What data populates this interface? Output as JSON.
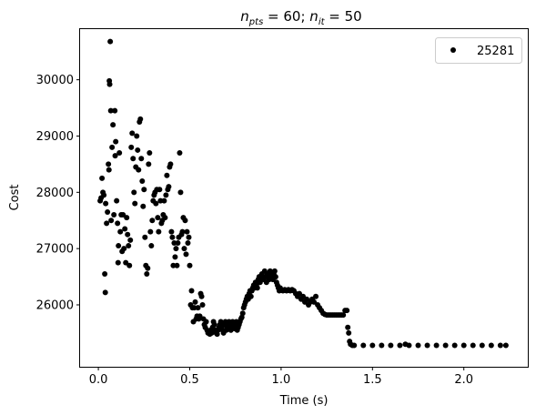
{
  "chart_data": {
    "type": "scatter",
    "title": "n_pts = 60; n_it = 50",
    "title_parts": {
      "n": "n",
      "pts_sub": "pts",
      "eq1": " = 60; ",
      "n2": "n",
      "it_sub": "it",
      "eq2": " = 50"
    },
    "xlabel": "Time (s)",
    "ylabel": "Cost",
    "xlim": [
      -0.1,
      2.35
    ],
    "ylim": [
      24900,
      30900
    ],
    "xticks": [
      0.0,
      0.5,
      1.0,
      1.5,
      2.0
    ],
    "xtick_labels": [
      "0.0",
      "0.5",
      "1.0",
      "1.5",
      "2.0"
    ],
    "yticks": [
      26000,
      27000,
      28000,
      29000,
      30000
    ],
    "ytick_labels": [
      "26000",
      "27000",
      "28000",
      "29000",
      "30000"
    ],
    "grid": false,
    "legend_position": "top-right",
    "series": [
      {
        "name": "25281",
        "color": "#000000",
        "marker": "circle",
        "points": [
          [
            0.01,
            27850
          ],
          [
            0.015,
            27900
          ],
          [
            0.02,
            28250
          ],
          [
            0.025,
            28000
          ],
          [
            0.03,
            27950
          ],
          [
            0.035,
            26550
          ],
          [
            0.038,
            26220
          ],
          [
            0.04,
            27800
          ],
          [
            0.045,
            27450
          ],
          [
            0.05,
            27650
          ],
          [
            0.055,
            28500
          ],
          [
            0.058,
            28400
          ],
          [
            0.06,
            29980
          ],
          [
            0.062,
            29920
          ],
          [
            0.065,
            30680
          ],
          [
            0.068,
            29450
          ],
          [
            0.07,
            27500
          ],
          [
            0.075,
            28800
          ],
          [
            0.08,
            29200
          ],
          [
            0.085,
            27600
          ],
          [
            0.09,
            29450
          ],
          [
            0.092,
            28650
          ],
          [
            0.095,
            28900
          ],
          [
            0.1,
            27850
          ],
          [
            0.105,
            27450
          ],
          [
            0.108,
            26750
          ],
          [
            0.11,
            27050
          ],
          [
            0.115,
            28700
          ],
          [
            0.12,
            27300
          ],
          [
            0.125,
            27600
          ],
          [
            0.13,
            26950
          ],
          [
            0.135,
            27600
          ],
          [
            0.14,
            27000
          ],
          [
            0.145,
            27350
          ],
          [
            0.15,
            26750
          ],
          [
            0.155,
            27550
          ],
          [
            0.16,
            27250
          ],
          [
            0.165,
            27050
          ],
          [
            0.17,
            26700
          ],
          [
            0.175,
            27150
          ],
          [
            0.18,
            28800
          ],
          [
            0.185,
            29050
          ],
          [
            0.19,
            28600
          ],
          [
            0.195,
            28000
          ],
          [
            0.2,
            27800
          ],
          [
            0.205,
            28450
          ],
          [
            0.21,
            29000
          ],
          [
            0.215,
            28750
          ],
          [
            0.22,
            28400
          ],
          [
            0.225,
            29250
          ],
          [
            0.23,
            29300
          ],
          [
            0.235,
            28600
          ],
          [
            0.24,
            28200
          ],
          [
            0.245,
            27750
          ],
          [
            0.25,
            28050
          ],
          [
            0.255,
            27200
          ],
          [
            0.26,
            26700
          ],
          [
            0.265,
            26550
          ],
          [
            0.27,
            26650
          ],
          [
            0.275,
            28500
          ],
          [
            0.28,
            28700
          ],
          [
            0.285,
            27300
          ],
          [
            0.29,
            27050
          ],
          [
            0.295,
            27500
          ],
          [
            0.3,
            27850
          ],
          [
            0.305,
            27950
          ],
          [
            0.31,
            28000
          ],
          [
            0.315,
            27800
          ],
          [
            0.32,
            28050
          ],
          [
            0.325,
            27550
          ],
          [
            0.33,
            27300
          ],
          [
            0.335,
            28050
          ],
          [
            0.34,
            27850
          ],
          [
            0.345,
            27450
          ],
          [
            0.35,
            27500
          ],
          [
            0.355,
            27600
          ],
          [
            0.36,
            27850
          ],
          [
            0.365,
            27550
          ],
          [
            0.37,
            27950
          ],
          [
            0.375,
            28300
          ],
          [
            0.38,
            28050
          ],
          [
            0.385,
            28100
          ],
          [
            0.39,
            28450
          ],
          [
            0.395,
            28500
          ],
          [
            0.4,
            27300
          ],
          [
            0.405,
            27200
          ],
          [
            0.41,
            26700
          ],
          [
            0.415,
            27100
          ],
          [
            0.42,
            26850
          ],
          [
            0.425,
            27000
          ],
          [
            0.43,
            26700
          ],
          [
            0.435,
            27100
          ],
          [
            0.44,
            27200
          ],
          [
            0.445,
            28700
          ],
          [
            0.45,
            28000
          ],
          [
            0.455,
            27250
          ],
          [
            0.46,
            27300
          ],
          [
            0.465,
            27550
          ],
          [
            0.47,
            27000
          ],
          [
            0.475,
            27500
          ],
          [
            0.48,
            26900
          ],
          [
            0.485,
            27300
          ],
          [
            0.49,
            27100
          ],
          [
            0.495,
            27200
          ],
          [
            0.5,
            26700
          ],
          [
            0.505,
            26000
          ],
          [
            0.51,
            26250
          ],
          [
            0.515,
            25950
          ],
          [
            0.52,
            25700
          ],
          [
            0.525,
            25950
          ],
          [
            0.53,
            26050
          ],
          [
            0.535,
            25750
          ],
          [
            0.54,
            25800
          ],
          [
            0.545,
            25950
          ],
          [
            0.55,
            25750
          ],
          [
            0.555,
            25800
          ],
          [
            0.56,
            26200
          ],
          [
            0.565,
            26150
          ],
          [
            0.57,
            26000
          ],
          [
            0.575,
            25750
          ],
          [
            0.58,
            25650
          ],
          [
            0.585,
            25600
          ],
          [
            0.59,
            25700
          ],
          [
            0.595,
            25550
          ],
          [
            0.6,
            25500
          ],
          [
            0.605,
            25520
          ],
          [
            0.61,
            25480
          ],
          [
            0.615,
            25550
          ],
          [
            0.62,
            25500
          ],
          [
            0.625,
            25600
          ],
          [
            0.63,
            25700
          ],
          [
            0.635,
            25650
          ],
          [
            0.64,
            25550
          ],
          [
            0.645,
            25500
          ],
          [
            0.65,
            25480
          ],
          [
            0.655,
            25550
          ],
          [
            0.66,
            25600
          ],
          [
            0.665,
            25650
          ],
          [
            0.67,
            25700
          ],
          [
            0.675,
            25600
          ],
          [
            0.68,
            25550
          ],
          [
            0.685,
            25500
          ],
          [
            0.69,
            25650
          ],
          [
            0.695,
            25700
          ],
          [
            0.7,
            25550
          ],
          [
            0.705,
            25600
          ],
          [
            0.71,
            25650
          ],
          [
            0.715,
            25700
          ],
          [
            0.72,
            25600
          ],
          [
            0.725,
            25550
          ],
          [
            0.73,
            25650
          ],
          [
            0.735,
            25700
          ],
          [
            0.74,
            25620
          ],
          [
            0.745,
            25580
          ],
          [
            0.75,
            25650
          ],
          [
            0.755,
            25700
          ],
          [
            0.76,
            25550
          ],
          [
            0.765,
            25600
          ],
          [
            0.77,
            25650
          ],
          [
            0.775,
            25700
          ],
          [
            0.78,
            25750
          ],
          [
            0.785,
            25780
          ],
          [
            0.79,
            25850
          ],
          [
            0.795,
            25950
          ],
          [
            0.8,
            26000
          ],
          [
            0.805,
            26050
          ],
          [
            0.81,
            26100
          ],
          [
            0.815,
            26150
          ],
          [
            0.82,
            26100
          ],
          [
            0.825,
            26200
          ],
          [
            0.83,
            26250
          ],
          [
            0.835,
            26150
          ],
          [
            0.84,
            26250
          ],
          [
            0.845,
            26300
          ],
          [
            0.85,
            26350
          ],
          [
            0.855,
            26300
          ],
          [
            0.86,
            26400
          ],
          [
            0.865,
            26350
          ],
          [
            0.87,
            26300
          ],
          [
            0.875,
            26450
          ],
          [
            0.88,
            26500
          ],
          [
            0.885,
            26400
          ],
          [
            0.89,
            26450
          ],
          [
            0.895,
            26550
          ],
          [
            0.9,
            26500
          ],
          [
            0.905,
            26450
          ],
          [
            0.91,
            26600
          ],
          [
            0.915,
            26500
          ],
          [
            0.92,
            26400
          ],
          [
            0.925,
            26550
          ],
          [
            0.93,
            26500
          ],
          [
            0.935,
            26450
          ],
          [
            0.94,
            26600
          ],
          [
            0.945,
            26550
          ],
          [
            0.95,
            26500
          ],
          [
            0.955,
            26450
          ],
          [
            0.96,
            26550
          ],
          [
            0.965,
            26600
          ],
          [
            0.97,
            26500
          ],
          [
            0.975,
            26400
          ],
          [
            0.98,
            26350
          ],
          [
            0.985,
            26300
          ],
          [
            0.99,
            26250
          ],
          [
            0.995,
            26300
          ],
          [
            1.0,
            26270
          ],
          [
            1.01,
            26250
          ],
          [
            1.02,
            26270
          ],
          [
            1.03,
            26250
          ],
          [
            1.04,
            26270
          ],
          [
            1.05,
            26250
          ],
          [
            1.06,
            26270
          ],
          [
            1.07,
            26250
          ],
          [
            1.08,
            26200
          ],
          [
            1.09,
            26150
          ],
          [
            1.1,
            26200
          ],
          [
            1.11,
            26100
          ],
          [
            1.12,
            26150
          ],
          [
            1.13,
            26050
          ],
          [
            1.14,
            26100
          ],
          [
            1.15,
            26000
          ],
          [
            1.16,
            26050
          ],
          [
            1.17,
            26100
          ],
          [
            1.18,
            26050
          ],
          [
            1.19,
            26150
          ],
          [
            1.2,
            26000
          ],
          [
            1.21,
            25950
          ],
          [
            1.22,
            25900
          ],
          [
            1.23,
            25850
          ],
          [
            1.24,
            25830
          ],
          [
            1.25,
            25820
          ],
          [
            1.26,
            25820
          ],
          [
            1.27,
            25820
          ],
          [
            1.28,
            25820
          ],
          [
            1.29,
            25820
          ],
          [
            1.3,
            25820
          ],
          [
            1.31,
            25820
          ],
          [
            1.32,
            25820
          ],
          [
            1.33,
            25820
          ],
          [
            1.34,
            25820
          ],
          [
            1.35,
            25900
          ],
          [
            1.36,
            25900
          ],
          [
            1.365,
            25600
          ],
          [
            1.37,
            25500
          ],
          [
            1.375,
            25350
          ],
          [
            1.38,
            25300
          ],
          [
            1.39,
            25280
          ],
          [
            1.4,
            25280
          ],
          [
            1.45,
            25280
          ],
          [
            1.5,
            25280
          ],
          [
            1.55,
            25280
          ],
          [
            1.6,
            25280
          ],
          [
            1.65,
            25280
          ],
          [
            1.68,
            25300
          ],
          [
            1.7,
            25280
          ],
          [
            1.75,
            25280
          ],
          [
            1.8,
            25280
          ],
          [
            1.85,
            25280
          ],
          [
            1.9,
            25280
          ],
          [
            1.95,
            25280
          ],
          [
            2.0,
            25280
          ],
          [
            2.05,
            25280
          ],
          [
            2.1,
            25280
          ],
          [
            2.15,
            25280
          ],
          [
            2.2,
            25280
          ],
          [
            2.23,
            25280
          ]
        ]
      }
    ]
  }
}
